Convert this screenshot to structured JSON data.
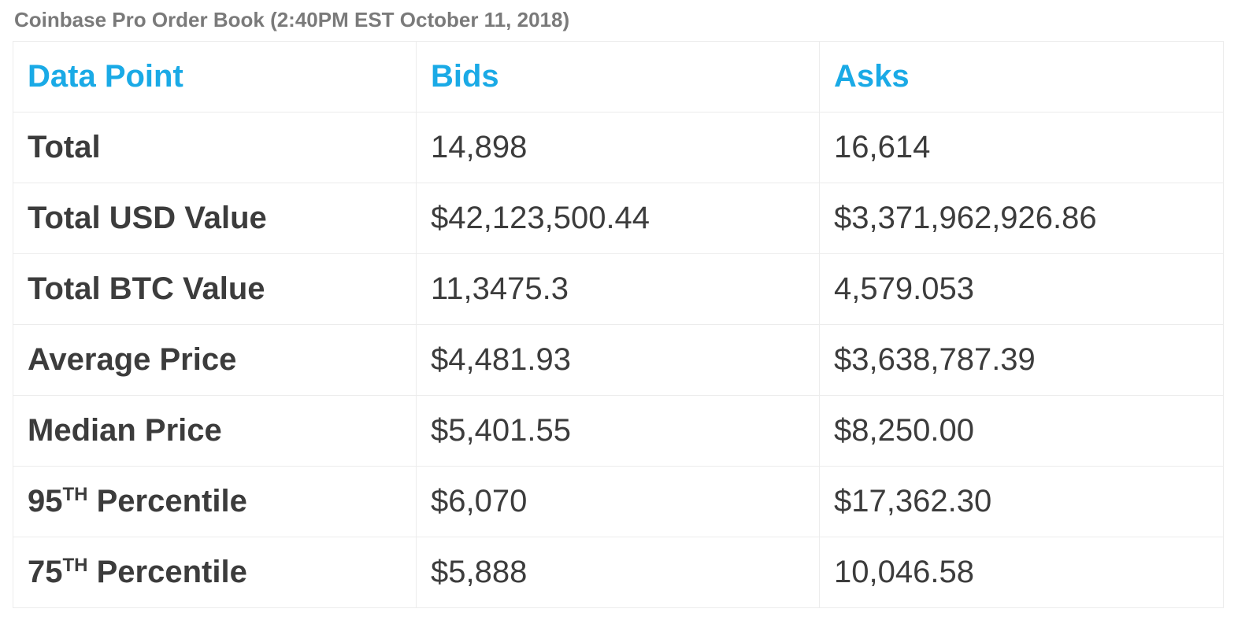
{
  "title": "Coinbase Pro Order Book (2:40PM EST October 11, 2018)",
  "table": {
    "headers": [
      "Data Point",
      "Bids",
      "Asks"
    ],
    "rows": [
      {
        "label": "Total",
        "bids": "14,898",
        "asks": "16,614"
      },
      {
        "label": "Total USD Value",
        "bids": "$42,123,500.44",
        "asks": "$3,371,962,926.86"
      },
      {
        "label": "Total BTC Value",
        "bids": "11,3475.3",
        "asks": "4,579.053"
      },
      {
        "label": "Average Price",
        "bids": "$4,481.93",
        "asks": "$3,638,787.39"
      },
      {
        "label": "Median Price",
        "bids": "$5,401.55",
        "asks": "$8,250.00"
      },
      {
        "label_num": "95",
        "label_sup": "TH",
        "label_rest": " Percentile",
        "bids": "$6,070",
        "asks": "$17,362.30"
      },
      {
        "label_num": "75",
        "label_sup": "TH",
        "label_rest": " Percentile",
        "bids": "$5,888",
        "asks": "10,046.58"
      }
    ]
  },
  "colors": {
    "header_text": "#1aaae6",
    "body_text": "#3c3c3c",
    "title_text": "#7a7a7a",
    "border": "#ececec"
  }
}
